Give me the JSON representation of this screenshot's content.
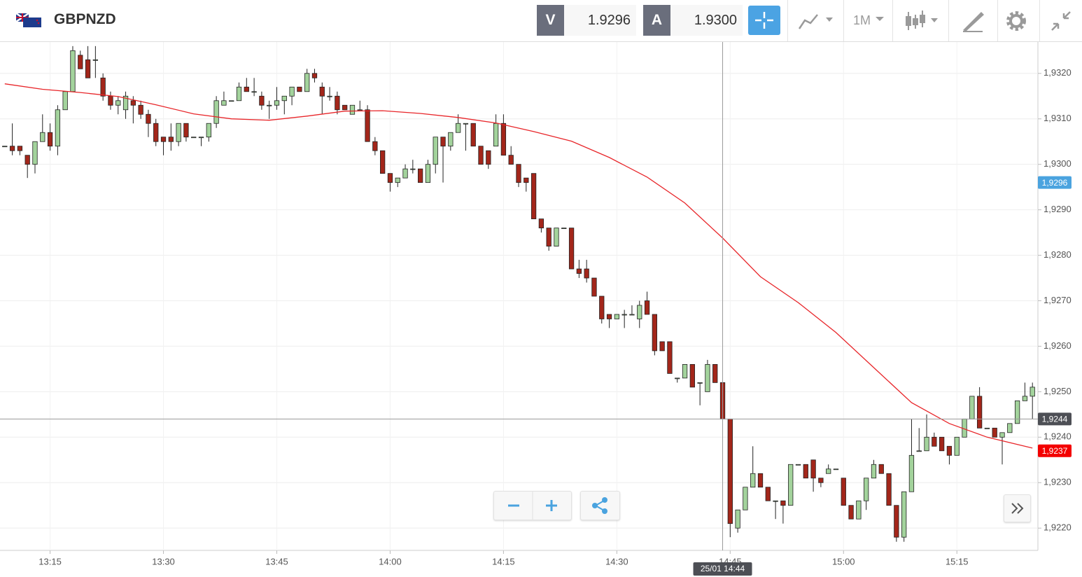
{
  "header": {
    "symbol": "GBPNZD",
    "bid": {
      "label": "V",
      "value": "1.9296"
    },
    "ask": {
      "label": "A",
      "value": "1.9300"
    },
    "timeframe": "1M"
  },
  "chart_data": {
    "type": "candlestick",
    "x": [
      "13:09",
      "13:10",
      "13:11",
      "13:12",
      "13:13",
      "13:14",
      "13:15",
      "13:16",
      "13:17",
      "13:18",
      "13:19",
      "13:20",
      "13:21",
      "13:22",
      "13:23",
      "13:24",
      "13:25",
      "13:26",
      "13:27",
      "13:28",
      "13:29",
      "13:30",
      "13:31",
      "13:32",
      "13:33",
      "13:34",
      "13:35",
      "13:36",
      "13:37",
      "13:38",
      "13:39",
      "13:40",
      "13:41",
      "13:42",
      "13:43",
      "13:44",
      "13:45",
      "13:46",
      "13:47",
      "13:48",
      "13:49",
      "13:50",
      "13:51",
      "13:52",
      "13:53",
      "13:54",
      "13:55",
      "13:56",
      "13:57",
      "13:58",
      "13:59",
      "14:00",
      "14:01",
      "14:02",
      "14:03",
      "14:04",
      "14:05",
      "14:06",
      "14:07",
      "14:08",
      "14:09",
      "14:10",
      "14:11",
      "14:12",
      "14:13",
      "14:14",
      "14:15",
      "14:16",
      "14:17",
      "14:18",
      "14:19",
      "14:20",
      "14:21",
      "14:22",
      "14:23",
      "14:24",
      "14:25",
      "14:26",
      "14:27",
      "14:28",
      "14:29",
      "14:30",
      "14:31",
      "14:32",
      "14:33",
      "14:34",
      "14:35",
      "14:36",
      "14:37",
      "14:38",
      "14:39",
      "14:40",
      "14:41",
      "14:42",
      "14:43",
      "14:44",
      "14:45",
      "14:46",
      "14:47",
      "14:48",
      "14:49",
      "14:50",
      "14:51",
      "14:52",
      "14:53",
      "14:54",
      "14:55",
      "14:56",
      "14:57",
      "14:58",
      "14:59",
      "15:00",
      "15:01",
      "15:02",
      "15:03",
      "15:04",
      "15:05",
      "15:06",
      "15:07",
      "15:08",
      "15:09",
      "15:10",
      "15:11",
      "15:12",
      "15:13",
      "15:14",
      "15:15",
      "15:16",
      "15:17",
      "15:18",
      "15:19",
      "15:20",
      "15:21",
      "15:22",
      "15:23",
      "15:24",
      "15:25"
    ],
    "open": [
      1.9304,
      1.9304,
      1.9304,
      1.9302,
      1.93,
      1.9305,
      1.9307,
      1.9304,
      1.9312,
      1.9316,
      1.9324,
      1.9323,
      1.9323,
      1.9319,
      1.9315,
      1.9313,
      1.9312,
      1.9314,
      1.9313,
      1.9311,
      1.9309,
      1.9306,
      1.9306,
      1.9305,
      1.9309,
      1.9306,
      1.9306,
      1.9306,
      1.9309,
      1.9313,
      1.9314,
      1.9314,
      1.9317,
      1.9316,
      1.9315,
      1.9313,
      1.9313,
      1.9314,
      1.9315,
      1.9317,
      1.9316,
      1.932,
      1.9317,
      1.9315,
      1.9315,
      1.9313,
      1.9311,
      1.9312,
      1.9312,
      1.9305,
      1.9303,
      1.9298,
      1.9296,
      1.9297,
      1.9299,
      1.9299,
      1.9296,
      1.93,
      1.9306,
      1.9304,
      1.9307,
      1.9309,
      1.9309,
      1.9304,
      1.9303,
      1.9304,
      1.9309,
      1.9302,
      1.93,
      1.9297,
      1.9298,
      1.9288,
      1.9286,
      1.9282,
      1.9286,
      1.9286,
      1.9277,
      1.9277,
      1.9275,
      1.9271,
      1.9267,
      1.9266,
      1.9267,
      1.9267,
      1.9266,
      1.927,
      1.9267,
      1.9261,
      1.9261,
      1.9253,
      1.9253,
      1.9256,
      1.9252,
      1.925,
      1.9256,
      1.9252,
      1.9244,
      1.922,
      1.9224,
      1.9229,
      1.9232,
      1.9229,
      1.9226,
      1.9226,
      1.9225,
      1.9234,
      1.9234,
      1.9235,
      1.9231,
      1.9232,
      1.9233,
      1.9231,
      1.9225,
      1.9222,
      1.9226,
      1.9231,
      1.9234,
      1.9232,
      1.9225,
      1.9218,
      1.9228,
      1.9237,
      1.9237,
      1.924,
      1.924,
      1.9238,
      1.9236,
      1.924,
      1.9244,
      1.9249,
      1.9242,
      1.9242,
      1.924,
      1.9241,
      1.9243,
      1.9248,
      1.9249
    ],
    "high": [
      1.9304,
      1.9309,
      1.9304,
      1.9302,
      1.9305,
      1.9311,
      1.9309,
      1.9313,
      1.9316,
      1.9326,
      1.9325,
      1.9326,
      1.9326,
      1.932,
      1.9316,
      1.9315,
      1.9316,
      1.9315,
      1.9314,
      1.9312,
      1.931,
      1.9306,
      1.9309,
      1.9309,
      1.9309,
      1.9306,
      1.9306,
      1.9309,
      1.9315,
      1.9316,
      1.9314,
      1.9318,
      1.9319,
      1.9319,
      1.9316,
      1.9314,
      1.9317,
      1.9315,
      1.9317,
      1.9317,
      1.9321,
      1.9321,
      1.9318,
      1.9317,
      1.9316,
      1.9313,
      1.9313,
      1.9314,
      1.9313,
      1.9306,
      1.9303,
      1.9298,
      1.9297,
      1.93,
      1.9301,
      1.9299,
      1.9301,
      1.9306,
      1.9306,
      1.9307,
      1.9311,
      1.9309,
      1.9309,
      1.9304,
      1.9303,
      1.9311,
      1.9311,
      1.9304,
      1.93,
      1.9297,
      1.9298,
      1.9288,
      1.9286,
      1.9286,
      1.9286,
      1.9286,
      1.9279,
      1.9279,
      1.9275,
      1.9271,
      1.9267,
      1.9267,
      1.9268,
      1.9269,
      1.927,
      1.9272,
      1.9267,
      1.9261,
      1.9261,
      1.9253,
      1.9256,
      1.9256,
      1.9252,
      1.9257,
      1.9256,
      1.9252,
      1.9244,
      1.9224,
      1.9229,
      1.9238,
      1.9232,
      1.9229,
      1.9226,
      1.9226,
      1.9234,
      1.9234,
      1.9234,
      1.9235,
      1.9231,
      1.9234,
      1.9233,
      1.9231,
      1.9225,
      1.9226,
      1.9231,
      1.9235,
      1.9234,
      1.9232,
      1.9225,
      1.9228,
      1.9244,
      1.9242,
      1.9245,
      1.9241,
      1.924,
      1.9238,
      1.924,
      1.9244,
      1.9249,
      1.9251,
      1.9242,
      1.9242,
      1.9241,
      1.9243,
      1.9248,
      1.9252,
      1.9252
    ],
    "low": [
      1.9304,
      1.9302,
      1.9302,
      1.9297,
      1.9298,
      1.9305,
      1.9303,
      1.9302,
      1.9312,
      1.9316,
      1.9321,
      1.9319,
      1.9319,
      1.9314,
      1.9312,
      1.9311,
      1.931,
      1.9309,
      1.931,
      1.9306,
      1.9304,
      1.9302,
      1.9303,
      1.9304,
      1.9305,
      1.9306,
      1.9304,
      1.9305,
      1.9308,
      1.9313,
      1.9314,
      1.9314,
      1.9316,
      1.9315,
      1.9312,
      1.931,
      1.9312,
      1.9311,
      1.9313,
      1.9316,
      1.9316,
      1.9318,
      1.9311,
      1.9314,
      1.9311,
      1.9312,
      1.9311,
      1.9312,
      1.9305,
      1.9302,
      1.9298,
      1.9294,
      1.9295,
      1.9297,
      1.9298,
      1.9296,
      1.9296,
      1.9298,
      1.9296,
      1.9303,
      1.9307,
      1.9303,
      1.9304,
      1.93,
      1.9299,
      1.9304,
      1.9302,
      1.93,
      1.9295,
      1.9294,
      1.9288,
      1.9285,
      1.9281,
      1.9282,
      1.9286,
      1.9277,
      1.9275,
      1.9274,
      1.9271,
      1.9265,
      1.9264,
      1.9266,
      1.9264,
      1.9267,
      1.9264,
      1.9267,
      1.9258,
      1.9259,
      1.9254,
      1.9252,
      1.9253,
      1.9251,
      1.9247,
      1.925,
      1.9252,
      1.9244,
      1.9218,
      1.9219,
      1.9224,
      1.9229,
      1.9229,
      1.9226,
      1.9222,
      1.9221,
      1.9225,
      1.9234,
      1.9231,
      1.9228,
      1.9229,
      1.9232,
      1.9233,
      1.9225,
      1.9222,
      1.9222,
      1.9224,
      1.9231,
      1.9232,
      1.9225,
      1.9217,
      1.9217,
      1.9228,
      1.9237,
      1.9237,
      1.9238,
      1.9237,
      1.9234,
      1.9236,
      1.924,
      1.9244,
      1.9242,
      1.9242,
      1.924,
      1.9234,
      1.9241,
      1.9243,
      1.9248,
      1.9244
    ],
    "close": [
      1.9304,
      1.9303,
      1.9303,
      1.93,
      1.9305,
      1.9307,
      1.9304,
      1.9312,
      1.9316,
      1.9325,
      1.9321,
      1.9319,
      1.9323,
      1.9315,
      1.9313,
      1.9314,
      1.9315,
      1.9313,
      1.9311,
      1.9309,
      1.9305,
      1.9305,
      1.9305,
      1.9309,
      1.9306,
      1.9306,
      1.9306,
      1.9309,
      1.9314,
      1.9314,
      1.9314,
      1.9317,
      1.9316,
      1.9316,
      1.9313,
      1.9313,
      1.9314,
      1.9315,
      1.9317,
      1.9316,
      1.932,
      1.9319,
      1.9315,
      1.9315,
      1.9312,
      1.9312,
      1.9313,
      1.9312,
      1.9305,
      1.9303,
      1.9298,
      1.9296,
      1.9297,
      1.9299,
      1.9299,
      1.9296,
      1.93,
      1.9306,
      1.9304,
      1.9307,
      1.9309,
      1.9309,
      1.9304,
      1.93,
      1.93,
      1.9309,
      1.9302,
      1.93,
      1.9296,
      1.9296,
      1.9288,
      1.9286,
      1.9282,
      1.9286,
      1.9286,
      1.9277,
      1.9276,
      1.9275,
      1.9271,
      1.9266,
      1.9266,
      1.9267,
      1.9267,
      1.9267,
      1.9269,
      1.9267,
      1.9259,
      1.9259,
      1.9254,
      1.9253,
      1.9256,
      1.9251,
      1.9252,
      1.9256,
      1.9252,
      1.9244,
      1.9221,
      1.9224,
      1.9229,
      1.9232,
      1.9229,
      1.9226,
      1.9226,
      1.9225,
      1.9234,
      1.9234,
      1.9231,
      1.9231,
      1.923,
      1.9233,
      1.9233,
      1.9225,
      1.9222,
      1.9226,
      1.9231,
      1.9234,
      1.9232,
      1.9225,
      1.9218,
      1.9228,
      1.9236,
      1.9237,
      1.924,
      1.9238,
      1.9237,
      1.9236,
      1.924,
      1.9244,
      1.9249,
      1.9242,
      1.9242,
      1.924,
      1.9241,
      1.9243,
      1.9248,
      1.9249,
      1.9251
    ],
    "up_color": "#a3d39c",
    "down_color": "#a3261a",
    "moving_average": {
      "color": "#e8262a",
      "x": [
        "13:09",
        "13:14",
        "13:19",
        "13:24",
        "13:29",
        "13:34",
        "13:39",
        "13:44",
        "13:49",
        "13:54",
        "13:59",
        "14:04",
        "14:09",
        "14:14",
        "14:19",
        "14:24",
        "14:29",
        "14:34",
        "14:39",
        "14:44",
        "14:49",
        "14:54",
        "14:59",
        "15:04",
        "15:09",
        "15:14",
        "15:19",
        "15:25"
      ],
      "values": [
        1.93177,
        1.93165,
        1.93158,
        1.93149,
        1.93131,
        1.93111,
        1.931,
        1.93097,
        1.93106,
        1.93117,
        1.93118,
        1.93112,
        1.93103,
        1.93091,
        1.93072,
        1.93051,
        1.93015,
        1.92972,
        1.92915,
        1.92838,
        1.92753,
        1.92696,
        1.9263,
        1.92553,
        1.92476,
        1.9243,
        1.924,
        1.92376
      ]
    },
    "xlim": [
      "13:08",
      "15:26"
    ],
    "xticks": [
      "13:15",
      "13:30",
      "13:45",
      "14:00",
      "14:15",
      "14:30",
      "14:45",
      "15:00",
      "15:15"
    ],
    "ylim": [
      1.92151,
      1.93269
    ],
    "yticks": [
      {
        "value": 1.922,
        "label": "1,9220"
      },
      {
        "value": 1.923,
        "label": "1,9230"
      },
      {
        "value": 1.924,
        "label": "1,9240"
      },
      {
        "value": 1.925,
        "label": "1,9250"
      },
      {
        "value": 1.926,
        "label": "1,9260"
      },
      {
        "value": 1.927,
        "label": "1,9270"
      },
      {
        "value": 1.928,
        "label": "1,9280"
      },
      {
        "value": 1.929,
        "label": "1,9290"
      },
      {
        "value": 1.93,
        "label": "1,9300"
      },
      {
        "value": 1.931,
        "label": "1,9310"
      },
      {
        "value": 1.932,
        "label": "1,9320"
      }
    ],
    "grid": true,
    "price_tags": [
      {
        "value": 1.9296,
        "label": "1,9296",
        "color": "#4aa3df"
      },
      {
        "value": 1.9244,
        "label": "1,9244",
        "color": "#4d4f55"
      },
      {
        "value": 1.9237,
        "label": "1,9237",
        "color": "#f30000"
      }
    ],
    "crosshair": {
      "x": "14:44",
      "y": 1.9244,
      "label": "25/01 14:44"
    }
  }
}
